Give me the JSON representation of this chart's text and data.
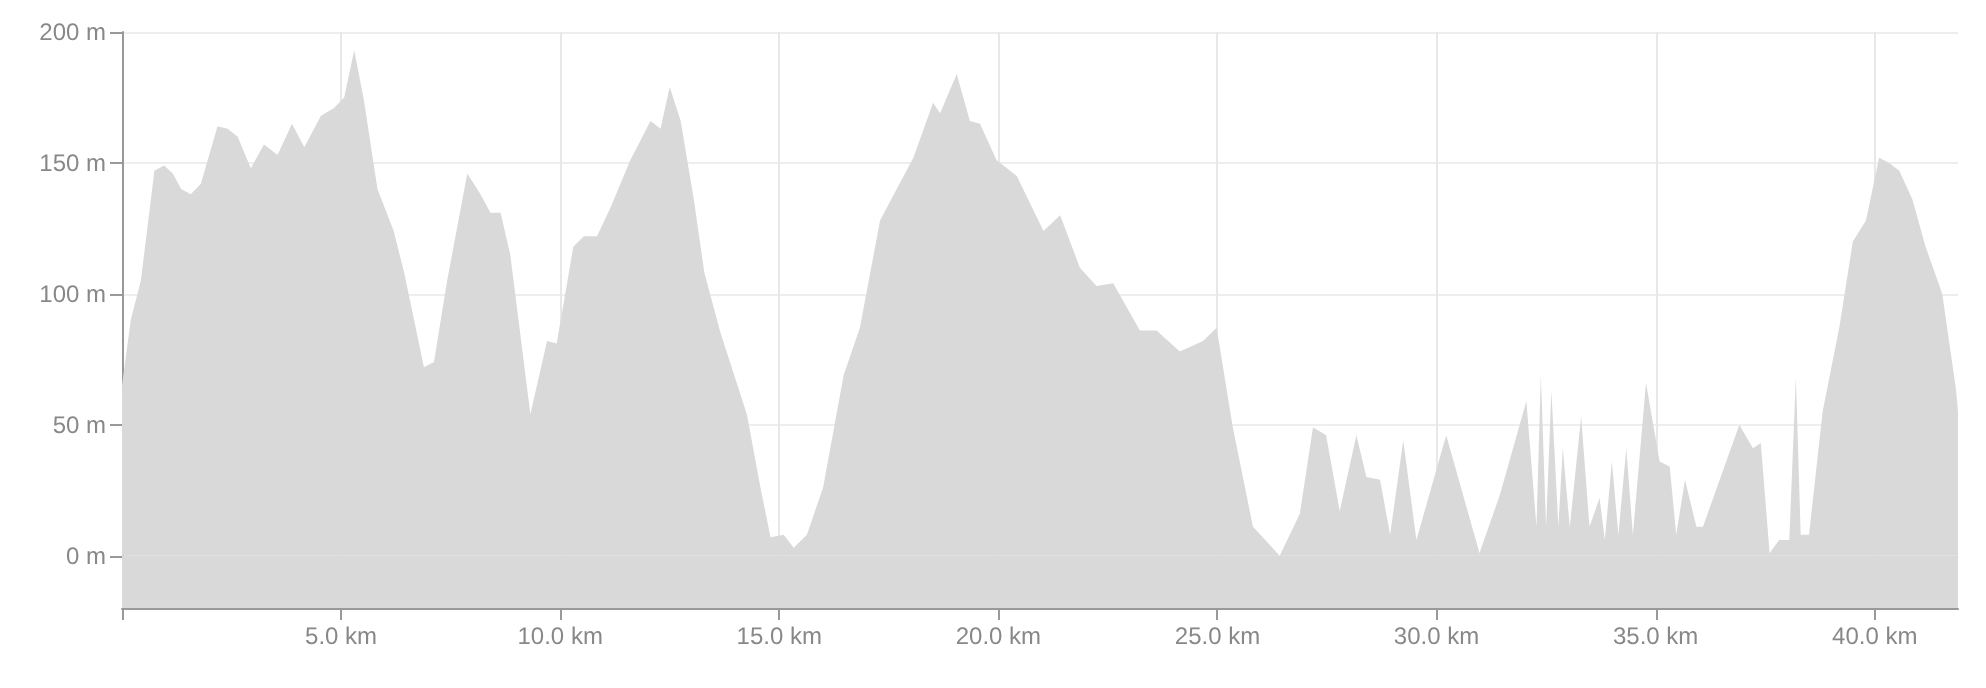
{
  "chart_data": {
    "type": "area",
    "xlim": [
      0,
      41.9
    ],
    "ylim": [
      -20,
      200
    ],
    "xticks": [
      {
        "value": 0,
        "label": null
      },
      {
        "value": 5,
        "label": "5.0 km"
      },
      {
        "value": 10,
        "label": "10.0 km"
      },
      {
        "value": 15,
        "label": "15.0 km"
      },
      {
        "value": 20,
        "label": "20.0 km"
      },
      {
        "value": 25,
        "label": "25.0 km"
      },
      {
        "value": 30,
        "label": "30.0 km"
      },
      {
        "value": 35,
        "label": "35.0 km"
      },
      {
        "value": 40,
        "label": "40.0 km"
      }
    ],
    "yticks": [
      {
        "value": 0,
        "label": "0 m"
      },
      {
        "value": 50,
        "label": "50 m"
      },
      {
        "value": 100,
        "label": "100 m"
      },
      {
        "value": 150,
        "label": "150 m"
      },
      {
        "value": 200,
        "label": "200 m"
      }
    ],
    "grid": true,
    "marker": "none",
    "bands": [
      {
        "axis": "y",
        "from": -20,
        "to": 0,
        "color": "#d9d9d9"
      }
    ],
    "x": [
      0,
      0.2,
      0.43,
      0.74,
      0.96,
      1.16,
      1.35,
      1.57,
      1.8,
      2.18,
      2.41,
      2.64,
      2.94,
      3.24,
      3.55,
      3.88,
      4.16,
      4.54,
      4.84,
      5.07,
      5.3,
      5.52,
      5.83,
      6.2,
      6.44,
      6.89,
      7.12,
      7.42,
      7.88,
      8.18,
      8.41,
      8.64,
      8.86,
      9.32,
      9.7,
      9.92,
      10.3,
      10.54,
      10.84,
      11.15,
      11.6,
      12.06,
      12.29,
      12.5,
      12.75,
      13.05,
      13.29,
      13.66,
      14.26,
      14.57,
      14.8,
      15.1,
      15.33,
      15.63,
      16.0,
      16.47,
      16.84,
      17.3,
      17.68,
      18.06,
      18.51,
      18.67,
      19.05,
      19.35,
      19.58,
      19.96,
      20.42,
      21.03,
      21.41,
      21.86,
      22.24,
      22.62,
      23.23,
      23.61,
      24.14,
      24.67,
      24.98,
      25.35,
      25.81,
      26.42,
      26.88,
      27.18,
      27.48,
      27.79,
      28.17,
      28.4,
      28.71,
      28.94,
      29.24,
      29.54,
      30.22,
      30.98,
      31.44,
      32.05,
      32.28,
      32.38,
      32.5,
      32.62,
      32.78,
      32.88,
      33.04,
      33.3,
      33.49,
      33.72,
      33.84,
      34.0,
      34.15,
      34.33,
      34.48,
      34.78,
      35.09,
      35.32,
      35.47,
      35.67,
      35.93,
      36.08,
      36.61,
      36.91,
      37.22,
      37.4,
      37.6,
      37.82,
      38.05,
      38.2,
      38.31,
      38.5,
      38.81,
      39.19,
      39.5,
      39.8,
      40.1,
      40.33,
      40.56,
      40.86,
      41.16,
      41.54,
      41.85,
      41.9
    ],
    "series": [
      {
        "color": "#d9d9d9",
        "values": [
          65,
          90,
          105,
          147,
          149,
          146,
          140,
          138,
          142,
          164,
          163,
          160,
          148,
          157,
          153,
          165,
          156,
          168,
          171,
          175,
          193,
          174,
          140,
          124,
          108,
          72,
          74,
          105,
          146,
          138,
          131,
          131,
          115,
          54,
          82,
          81,
          118,
          122,
          122,
          133,
          151,
          166,
          163,
          179,
          166,
          136,
          108,
          85,
          54,
          26,
          7,
          8,
          3,
          8,
          26,
          69,
          87,
          128,
          140,
          152,
          173,
          169,
          184,
          166,
          165,
          151,
          145,
          124,
          130,
          110,
          103,
          104,
          86,
          86,
          78,
          82,
          87,
          49,
          11,
          0,
          16,
          49,
          46,
          17,
          46,
          30,
          29,
          8,
          44,
          6,
          46,
          1,
          23,
          59,
          11,
          69,
          11,
          63,
          11,
          41,
          11,
          53,
          11,
          22,
          6,
          36,
          8,
          41,
          8,
          66,
          36,
          34,
          8,
          29,
          11,
          11,
          36,
          50,
          41,
          43,
          1,
          6,
          6,
          68,
          8,
          8,
          55,
          87,
          120,
          128,
          152,
          150,
          147,
          136,
          118,
          100,
          64,
          55
        ]
      }
    ]
  }
}
